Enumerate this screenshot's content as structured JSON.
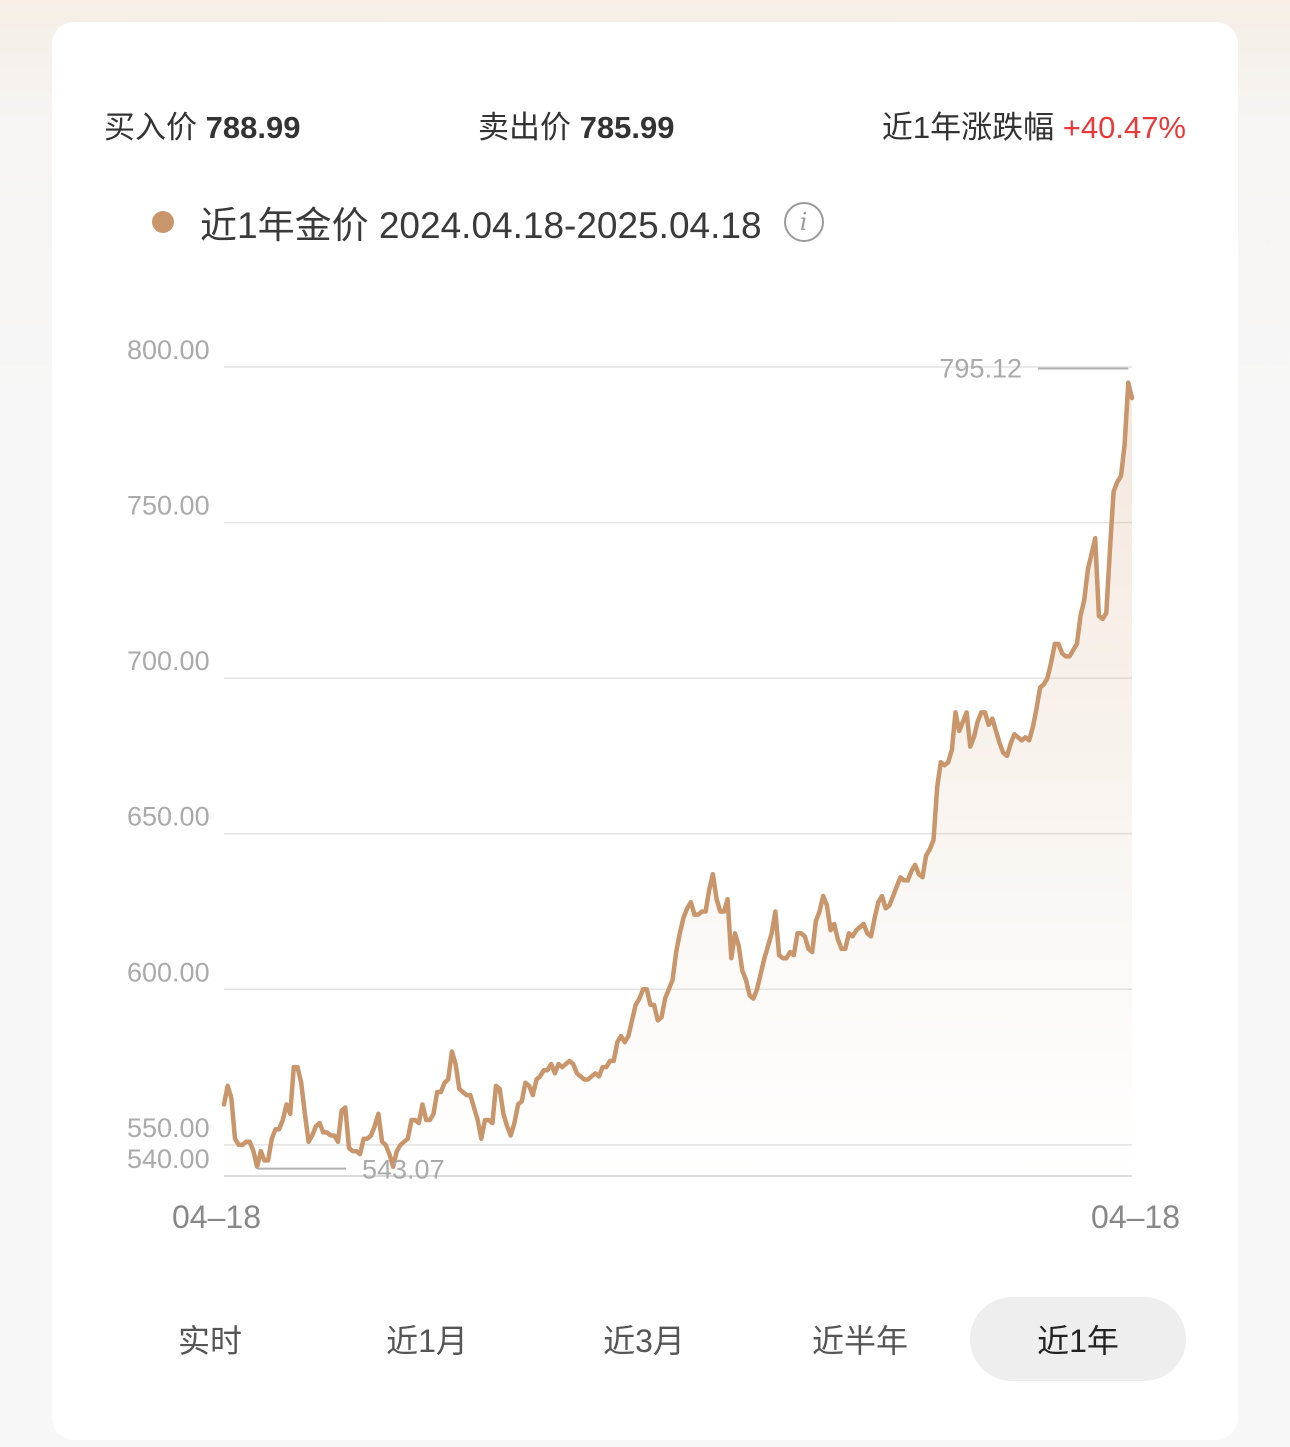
{
  "stats": {
    "buy_label": "买入价",
    "buy_value": "788.99",
    "sell_label": "卖出价",
    "sell_value": "785.99",
    "change_label": "近1年涨跌幅",
    "change_value": "+40.47%"
  },
  "legend": {
    "label": "近1年金价 2024.04.18-2025.04.18",
    "info_icon": "info-icon"
  },
  "colors": {
    "line": "#c9956a",
    "change_up": "#e83a3a",
    "grid": "#e3e3e3",
    "axis_text": "#aaaaaa"
  },
  "tabs": [
    {
      "label": "实时",
      "active": false
    },
    {
      "label": "近1月",
      "active": false
    },
    {
      "label": "近3月",
      "active": false
    },
    {
      "label": "近半年",
      "active": false
    },
    {
      "label": "近1年",
      "active": true
    }
  ],
  "chart_data": {
    "type": "area",
    "title": "",
    "xlabel": "",
    "ylabel": "",
    "x_tick_labels": [
      "04–18",
      "04–18"
    ],
    "y_ticks": [
      800,
      750,
      700,
      650,
      600,
      550,
      540
    ],
    "y_tick_labels": [
      "800.00",
      "750.00",
      "700.00",
      "650.00",
      "600.00",
      "550.00",
      "540.00"
    ],
    "ylim": [
      540,
      800
    ],
    "grid": true,
    "max_label": "795.12",
    "min_label": "543.07",
    "series": [
      {
        "values": [
          563,
          569,
          565,
          552,
          550,
          550,
          551,
          551,
          548,
          543,
          548,
          545,
          545,
          552,
          555,
          555,
          558,
          563,
          560,
          575,
          575,
          570,
          560,
          551,
          553,
          556,
          557,
          554,
          554,
          553,
          553,
          551,
          561,
          562,
          549,
          548,
          548,
          547,
          552,
          552,
          553,
          556,
          560,
          551,
          550,
          547,
          543,
          548,
          550,
          551,
          552,
          558,
          558,
          557,
          563,
          558,
          558,
          560,
          567,
          567,
          570,
          571,
          580,
          576,
          568,
          567,
          566,
          566,
          562,
          558,
          552,
          558,
          558,
          557,
          569,
          568,
          560,
          556,
          553,
          557,
          563,
          564,
          570,
          569,
          566,
          571,
          572,
          574,
          574,
          576,
          573,
          576,
          575,
          576,
          577,
          576,
          573,
          572,
          571,
          571,
          572,
          573,
          572,
          575,
          575,
          577,
          577,
          583,
          585,
          583,
          585,
          590,
          595,
          597,
          600,
          600,
          595,
          595,
          590,
          591,
          597,
          600,
          603,
          612,
          618,
          623,
          626,
          628,
          624,
          624,
          625,
          625,
          632,
          637,
          629,
          625,
          625,
          629,
          610,
          618,
          614,
          606,
          603,
          598,
          597,
          600,
          605,
          610,
          614,
          618,
          625,
          611,
          610,
          610,
          612,
          611,
          618,
          618,
          617,
          613,
          612,
          622,
          625,
          630,
          627,
          619,
          621,
          616,
          613,
          613,
          618,
          617,
          619,
          620,
          621,
          618,
          617,
          623,
          628,
          630,
          626,
          627,
          630,
          633,
          636,
          635,
          635,
          638,
          640,
          637,
          636,
          643,
          645,
          648,
          665,
          673,
          672,
          673,
          677,
          689,
          683,
          686,
          689,
          678,
          681,
          686,
          689,
          689,
          685,
          687,
          683,
          679,
          676,
          675,
          679,
          682,
          681,
          680,
          681,
          680,
          684,
          690,
          697,
          698,
          700,
          705,
          711,
          711,
          708,
          707,
          707,
          709,
          711,
          720,
          725,
          735,
          740,
          745,
          720,
          719,
          721,
          741,
          760,
          763,
          765,
          775,
          795,
          790
        ]
      }
    ]
  }
}
